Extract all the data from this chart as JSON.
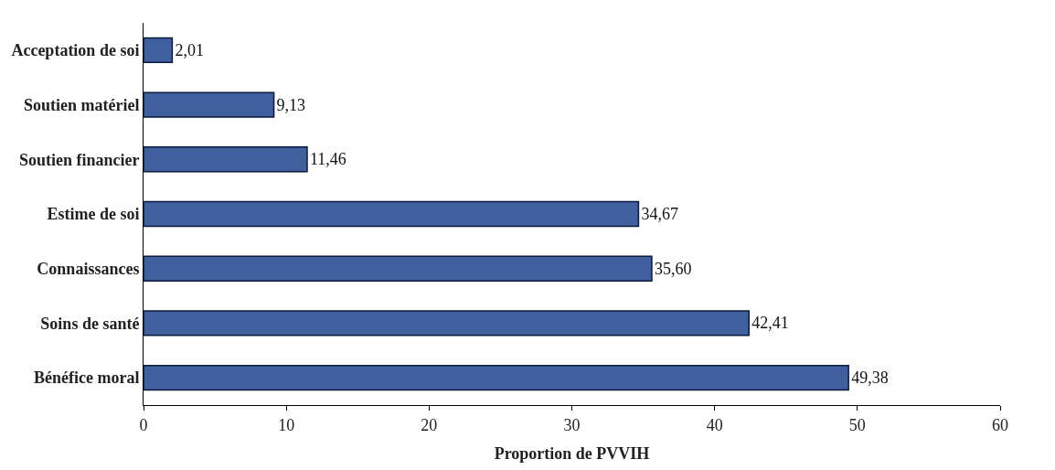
{
  "chart_data": {
    "type": "bar",
    "orientation": "horizontal",
    "xlabel": "Proportion de PVVIH",
    "categories": [
      "Acceptation de soi",
      "Soutien matériel",
      "Soutien financier",
      "Estime de soi",
      "Connaissances",
      "Soins de santé",
      "Bénéfice moral"
    ],
    "values": [
      2.01,
      9.13,
      11.46,
      34.67,
      35.6,
      42.41,
      49.38
    ],
    "value_labels": [
      "2,01",
      "9,13",
      "11,46",
      "34,67",
      "35,60",
      "42,41",
      "49,38"
    ],
    "color": "#3f5f9f",
    "xlim": [
      0,
      60
    ],
    "xticks": [
      0,
      10,
      20,
      30,
      40,
      50,
      60
    ],
    "legend": false
  }
}
